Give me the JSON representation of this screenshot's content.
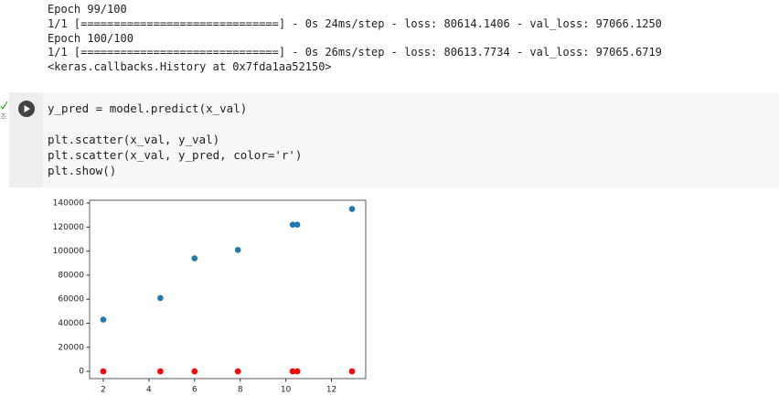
{
  "output_lines": [
    "Epoch 99/100",
    "1/1 [==============================] - 0s 24ms/step - loss: 80614.1406 - val_loss: 97066.1250",
    "Epoch 100/100",
    "1/1 [==============================] - 0s 26ms/step - loss: 80613.7734 - val_loss: 97065.6719",
    "<keras.callbacks.History at 0x7fda1aa52150>"
  ],
  "cell_status": "초",
  "code_lines": [
    "y_pred = model.predict(x_val)",
    "plt.scatter(x_val, y_val)",
    "plt.scatter(x_val, y_pred, color='r')",
    "plt.show()"
  ],
  "chart_data": {
    "type": "scatter",
    "x": [
      2.0,
      4.5,
      6.0,
      7.9,
      10.3,
      10.5,
      12.9
    ],
    "series": [
      {
        "color": "#1f77b4",
        "values": [
          43000,
          61000,
          94000,
          101000,
          122000,
          122000,
          135000
        ]
      },
      {
        "color": "#ff0000",
        "values": [
          0,
          0,
          0,
          0,
          0,
          0,
          0
        ]
      }
    ],
    "xlim": [
      1.4,
      13.5
    ],
    "ylim": [
      -6000,
      142300
    ],
    "xticks": [
      2,
      4,
      6,
      8,
      10,
      12
    ],
    "yticks": [
      0,
      20000,
      40000,
      60000,
      80000,
      100000,
      120000,
      140000
    ]
  }
}
